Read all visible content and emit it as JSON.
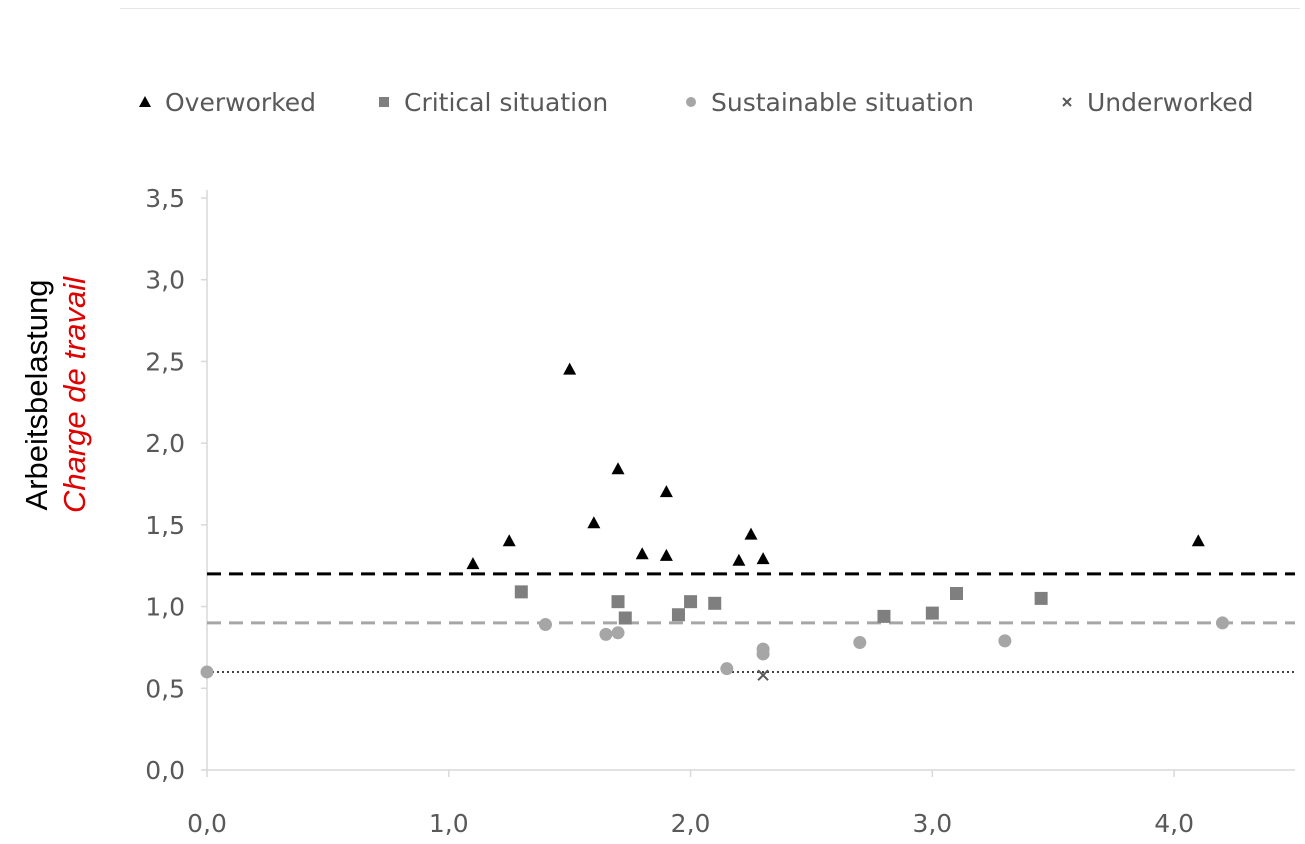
{
  "chart_data": {
    "type": "scatter",
    "title": "",
    "xlabel": "",
    "ylabel": "Arbeitsbelastung",
    "ylabel_secondary": "Charge de travail",
    "xlim": [
      0,
      4.5
    ],
    "ylim": [
      0,
      3.5
    ],
    "x_ticks": [
      "0,0",
      "1,0",
      "2,0",
      "3,0",
      "4,0"
    ],
    "y_ticks": [
      "0,0",
      "0,5",
      "1,0",
      "1,5",
      "2,0",
      "2,5",
      "3,0",
      "3,5"
    ],
    "grid": false,
    "legend_position": "top",
    "reference_lines": [
      {
        "y": 1.2,
        "style": "dashed",
        "color": "#000000"
      },
      {
        "y": 0.9,
        "style": "dashed",
        "color": "#a6a6a6"
      },
      {
        "y": 0.6,
        "style": "dotted",
        "color": "#404040"
      }
    ],
    "series": [
      {
        "name": "Overworked",
        "marker": "triangle",
        "color": "#000000",
        "points": [
          [
            1.1,
            1.26
          ],
          [
            1.25,
            1.4
          ],
          [
            1.5,
            2.45
          ],
          [
            1.6,
            1.51
          ],
          [
            1.7,
            1.84
          ],
          [
            1.8,
            1.32
          ],
          [
            1.9,
            1.7
          ],
          [
            1.9,
            1.31
          ],
          [
            2.2,
            1.28
          ],
          [
            2.25,
            1.44
          ],
          [
            2.3,
            1.29
          ],
          [
            4.1,
            1.4
          ]
        ]
      },
      {
        "name": "Critical situation",
        "marker": "square",
        "color": "#7f7f7f",
        "points": [
          [
            1.3,
            1.09
          ],
          [
            1.7,
            1.03
          ],
          [
            1.73,
            0.93
          ],
          [
            1.95,
            0.95
          ],
          [
            2.0,
            1.03
          ],
          [
            2.1,
            1.02
          ],
          [
            2.8,
            0.94
          ],
          [
            3.0,
            0.96
          ],
          [
            3.1,
            1.08
          ],
          [
            3.45,
            1.05
          ]
        ]
      },
      {
        "name": "Sustainable situation",
        "marker": "circle",
        "color": "#a6a6a6",
        "points": [
          [
            0.0,
            0.6
          ],
          [
            1.4,
            0.89
          ],
          [
            1.65,
            0.83
          ],
          [
            1.7,
            0.84
          ],
          [
            2.15,
            0.62
          ],
          [
            2.3,
            0.74
          ],
          [
            2.3,
            0.71
          ],
          [
            2.7,
            0.78
          ],
          [
            3.3,
            0.79
          ],
          [
            4.2,
            0.9
          ]
        ]
      },
      {
        "name": "Underworked",
        "marker": "x",
        "color": "#595959",
        "points": [
          [
            2.3,
            0.58
          ]
        ]
      }
    ]
  }
}
